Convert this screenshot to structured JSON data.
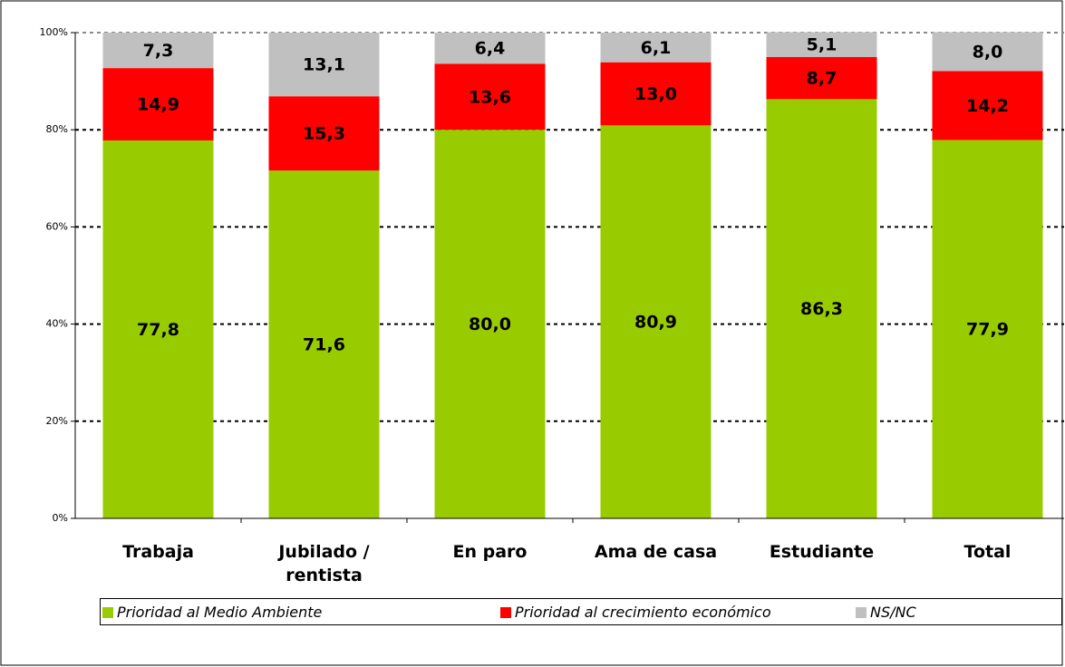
{
  "chart_data": {
    "type": "stacked-bar",
    "categories": [
      "Trabaja",
      "Jubilado / rentista",
      "En paro",
      "Ama de casa",
      "Estudiante",
      "Total"
    ],
    "series": [
      {
        "name": "Prioridad al Medio Ambiente",
        "color": "#99cc00",
        "values": [
          77.8,
          71.6,
          80.0,
          80.9,
          86.3,
          77.9
        ],
        "value_labels": [
          "77,8",
          "71,6",
          "80,0",
          "80,9",
          "86,3",
          "77,9"
        ]
      },
      {
        "name": "Prioridad al crecimiento económico",
        "color": "#ff0000",
        "values": [
          14.9,
          15.3,
          13.6,
          13.0,
          8.7,
          14.2
        ],
        "value_labels": [
          "14,9",
          "15,3",
          "13,6",
          "13,0",
          "8,7",
          "14,2"
        ]
      },
      {
        "name": "NS/NC",
        "color": "#c0c0c0",
        "values": [
          7.3,
          13.1,
          6.4,
          6.1,
          5.1,
          8.0
        ],
        "value_labels": [
          "7,3",
          "13,1",
          "6,4",
          "6,1",
          "5,1",
          "8,0"
        ]
      }
    ],
    "ylim": [
      0,
      100
    ],
    "yticks": [
      {
        "value": 0,
        "label": "0%"
      },
      {
        "value": 20,
        "label": "20%"
      },
      {
        "value": 40,
        "label": "40%"
      },
      {
        "value": 60,
        "label": "60%"
      },
      {
        "value": 80,
        "label": "80%"
      },
      {
        "value": 100,
        "label": "100%"
      }
    ],
    "grid": true,
    "legend": "bottom"
  }
}
